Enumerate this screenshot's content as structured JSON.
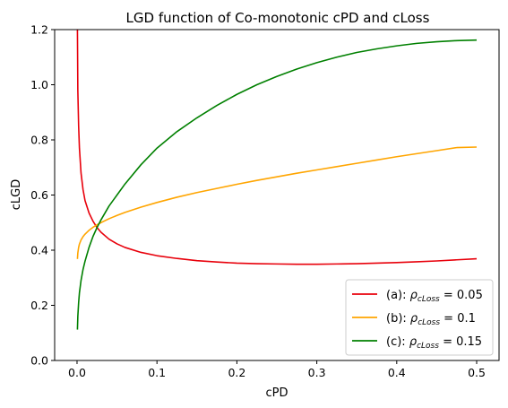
{
  "chart_data": {
    "type": "line",
    "title": "LGD function of Co-monotonic cPD and cLoss",
    "xlabel": "cPD",
    "ylabel": "cLGD",
    "xlim": [
      -0.028,
      0.528
    ],
    "ylim": [
      0.0,
      1.2
    ],
    "xticks": [
      0.0,
      0.1,
      0.2,
      0.3,
      0.4,
      0.5
    ],
    "xtick_labels": [
      "0.0",
      "0.1",
      "0.2",
      "0.3",
      "0.4",
      "0.5"
    ],
    "yticks": [
      0.0,
      0.2,
      0.4,
      0.6,
      0.8,
      1.0,
      1.2
    ],
    "ytick_labels": [
      "0.0",
      "0.2",
      "0.4",
      "0.6",
      "0.8",
      "1.0",
      "1.2"
    ],
    "grid": false,
    "legend_position": "lower-right",
    "series": [
      {
        "name": "(a): ρcLoss = 0.05",
        "legend_prefix": "(a): ",
        "legend_rho": "ρ",
        "legend_sub": "cLoss",
        "legend_rest": " = 0.05",
        "color": "#e8000b",
        "x": [
          0.0005,
          0.001,
          0.002,
          0.003,
          0.005,
          0.0075,
          0.01,
          0.015,
          0.02,
          0.025,
          0.03,
          0.04,
          0.05,
          0.06,
          0.08,
          0.1,
          0.125,
          0.15,
          0.175,
          0.2,
          0.225,
          0.25,
          0.275,
          0.3,
          0.325,
          0.35,
          0.375,
          0.4,
          0.425,
          0.45,
          0.475,
          0.5
        ],
        "y": [
          1.2,
          0.98,
          0.85,
          0.77,
          0.68,
          0.62,
          0.58,
          0.535,
          0.505,
          0.482,
          0.465,
          0.44,
          0.423,
          0.41,
          0.392,
          0.38,
          0.37,
          0.362,
          0.357,
          0.353,
          0.351,
          0.35,
          0.349,
          0.349,
          0.35,
          0.351,
          0.353,
          0.355,
          0.358,
          0.361,
          0.365,
          0.369
        ]
      },
      {
        "name": "(b): ρcLoss = 0.1",
        "legend_prefix": "(b): ",
        "legend_rho": "ρ",
        "legend_sub": "cLoss",
        "legend_rest": " = 0.1",
        "color": "#ffa500",
        "x": [
          0.0005,
          0.001,
          0.002,
          0.003,
          0.005,
          0.0075,
          0.01,
          0.015,
          0.02,
          0.025,
          0.03,
          0.04,
          0.05,
          0.06,
          0.08,
          0.1,
          0.125,
          0.15,
          0.175,
          0.2,
          0.225,
          0.25,
          0.275,
          0.3,
          0.325,
          0.35,
          0.375,
          0.4,
          0.425,
          0.45,
          0.475,
          0.5
        ],
        "y": [
          0.368,
          0.39,
          0.41,
          0.422,
          0.437,
          0.449,
          0.458,
          0.472,
          0.483,
          0.492,
          0.5,
          0.514,
          0.526,
          0.537,
          0.556,
          0.573,
          0.592,
          0.609,
          0.624,
          0.639,
          0.653,
          0.666,
          0.679,
          0.691,
          0.703,
          0.715,
          0.727,
          0.739,
          0.75,
          0.761,
          0.772,
          0.774
        ]
      },
      {
        "name": "(c): ρcLoss = 0.15",
        "legend_prefix": "(c): ",
        "legend_rho": "ρ",
        "legend_sub": "cLoss",
        "legend_rest": " = 0.15",
        "color": "#008000",
        "x": [
          0.0005,
          0.001,
          0.002,
          0.003,
          0.005,
          0.0075,
          0.01,
          0.015,
          0.02,
          0.025,
          0.03,
          0.04,
          0.05,
          0.06,
          0.08,
          0.1,
          0.125,
          0.15,
          0.175,
          0.2,
          0.225,
          0.25,
          0.275,
          0.3,
          0.325,
          0.35,
          0.375,
          0.4,
          0.425,
          0.45,
          0.475,
          0.5
        ],
        "y": [
          0.112,
          0.16,
          0.21,
          0.245,
          0.29,
          0.33,
          0.36,
          0.41,
          0.45,
          0.482,
          0.51,
          0.56,
          0.6,
          0.64,
          0.71,
          0.77,
          0.83,
          0.88,
          0.925,
          0.965,
          1.0,
          1.03,
          1.057,
          1.08,
          1.1,
          1.117,
          1.13,
          1.141,
          1.15,
          1.156,
          1.16,
          1.162
        ]
      }
    ]
  }
}
